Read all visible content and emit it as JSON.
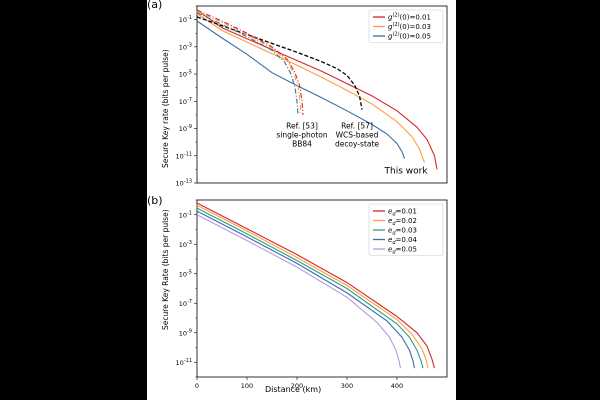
{
  "chart_data": [
    {
      "panel_label": "(a)",
      "type": "line",
      "ylabel": "Secure Key rate (bits per pulse)",
      "xlabel": "",
      "xlim": [
        0,
        500
      ],
      "ylim_log10": [
        -13,
        0
      ],
      "yscale": "log",
      "ytick_labels": [
        "10^-1",
        "10^-3",
        "10^-5",
        "10^-7",
        "10^-9",
        "10^-11",
        "10^-13"
      ],
      "ytick_exponents": [
        -1,
        -3,
        -5,
        -7,
        -9,
        -11,
        -13
      ],
      "legend_position": "top-right",
      "series": [
        {
          "name": "g(2)(0)=0.01",
          "color": "#d62728",
          "style": "solid",
          "x": [
            0,
            50,
            100,
            150,
            200,
            250,
            300,
            350,
            400,
            440,
            460,
            475,
            480
          ],
          "log10y": [
            -0.3,
            -1.6,
            -2.4,
            -3.2,
            -4.0,
            -4.8,
            -5.7,
            -6.6,
            -7.7,
            -8.9,
            -9.8,
            -11.0,
            -12.0
          ]
        },
        {
          "name": "g(2)(0)=0.03",
          "color": "#ff9f3a",
          "style": "solid",
          "x": [
            0,
            50,
            100,
            150,
            200,
            250,
            300,
            350,
            400,
            430,
            445,
            455
          ],
          "log10y": [
            -0.55,
            -1.8,
            -2.65,
            -3.5,
            -4.35,
            -5.25,
            -6.2,
            -7.2,
            -8.5,
            -9.6,
            -10.5,
            -11.5
          ]
        },
        {
          "name": "g(2)(0)=0.05",
          "color": "#3a6ea5",
          "style": "solid",
          "x": [
            0,
            50,
            100,
            150,
            200,
            250,
            300,
            350,
            380,
            400,
            410,
            415
          ],
          "log10y": [
            -1.1,
            -2.35,
            -3.55,
            -4.9,
            -5.85,
            -6.75,
            -7.7,
            -8.7,
            -9.4,
            -10.1,
            -10.7,
            -11.2
          ]
        },
        {
          "name": "Ref. [57] WCS-based decoy-state",
          "color": "#000000",
          "style": "dashed",
          "x": [
            0,
            50,
            100,
            150,
            200,
            250,
            280,
            300,
            315,
            325,
            330
          ],
          "log10y": [
            -0.8,
            -1.45,
            -2.1,
            -2.75,
            -3.4,
            -4.1,
            -4.6,
            -5.1,
            -5.8,
            -6.6,
            -7.6
          ]
        },
        {
          "name": "Ref. [53] single-photon BB84 (red)",
          "color": "#d62728",
          "style": "dashdot",
          "x": [
            0,
            50,
            100,
            150,
            180,
            195,
            205,
            210,
            212
          ],
          "log10y": [
            -0.3,
            -1.1,
            -2.0,
            -3.0,
            -3.9,
            -4.8,
            -5.8,
            -7.0,
            -8.0
          ]
        },
        {
          "name": "Ref. [53] single-photon BB84 (orange)",
          "color": "#ff9f3a",
          "style": "dashdot",
          "x": [
            0,
            50,
            100,
            150,
            180,
            193,
            202,
            206,
            208
          ],
          "log10y": [
            -0.4,
            -1.2,
            -2.1,
            -3.1,
            -4.0,
            -4.9,
            -5.9,
            -7.0,
            -8.0
          ]
        },
        {
          "name": "Ref. [53] single-photon BB84 (blue)",
          "color": "#3a6ea5",
          "style": "dashdot",
          "x": [
            0,
            50,
            100,
            150,
            175,
            188,
            196,
            200,
            202
          ],
          "log10y": [
            -0.5,
            -1.35,
            -2.25,
            -3.25,
            -4.1,
            -5.0,
            -6.0,
            -7.0,
            -7.9
          ]
        }
      ],
      "annotations": [
        {
          "text": [
            "Ref. [53]",
            "single-photon",
            "BB84"
          ],
          "x": 210,
          "log10y": -9.0,
          "anchor": "middle"
        },
        {
          "text": [
            "Ref. [57]",
            "WCS-based",
            "decoy-state"
          ],
          "x": 320,
          "log10y": -9.0,
          "anchor": "middle"
        },
        {
          "text": [
            "This work"
          ],
          "x": 375,
          "log10y": -12.3,
          "anchor": "start"
        }
      ]
    },
    {
      "panel_label": "(b)",
      "type": "line",
      "ylabel": "Secure Key Rate (bits per pulse)",
      "xlabel": "Distance (km)",
      "xlim": [
        0,
        500
      ],
      "xticks": [
        0,
        100,
        200,
        300,
        400
      ],
      "ylim_log10": [
        -12,
        0
      ],
      "yscale": "log",
      "ytick_labels": [
        "10^-1",
        "10^-3",
        "10^-5",
        "10^-7",
        "10^-9",
        "10^-11"
      ],
      "ytick_exponents": [
        -1,
        -3,
        -5,
        -7,
        -9,
        -11
      ],
      "legend_position": "top-right",
      "series": [
        {
          "name": "ed=0.01",
          "color": "#d62728",
          "x": [
            0,
            100,
            200,
            300,
            400,
            440,
            460,
            470,
            475
          ],
          "log10y": [
            -0.2,
            -1.95,
            -3.7,
            -5.6,
            -7.9,
            -9.0,
            -9.9,
            -10.8,
            -11.4
          ]
        },
        {
          "name": "ed=0.02",
          "color": "#ff9f3a",
          "x": [
            0,
            100,
            200,
            300,
            400,
            430,
            450,
            458,
            462
          ],
          "log10y": [
            -0.35,
            -2.1,
            -3.9,
            -5.8,
            -8.1,
            -9.1,
            -10.1,
            -10.8,
            -11.4
          ]
        },
        {
          "name": "ed=0.03",
          "color": "#2a9d8f",
          "x": [
            0,
            100,
            200,
            300,
            400,
            425,
            440,
            448,
            452
          ],
          "log10y": [
            -0.55,
            -2.3,
            -4.1,
            -6.0,
            -8.4,
            -9.3,
            -10.2,
            -10.9,
            -11.4
          ]
        },
        {
          "name": "ed=0.04",
          "color": "#3a6ea5",
          "x": [
            0,
            100,
            200,
            300,
            380,
            410,
            425,
            432,
            435
          ],
          "log10y": [
            -0.75,
            -2.5,
            -4.3,
            -6.3,
            -8.2,
            -9.3,
            -10.2,
            -10.9,
            -11.4
          ]
        },
        {
          "name": "ed=0.05",
          "color": "#b39ddb",
          "x": [
            0,
            100,
            200,
            300,
            360,
            385,
            398,
            404,
            407
          ],
          "log10y": [
            -1.0,
            -2.75,
            -4.55,
            -6.6,
            -8.3,
            -9.3,
            -10.2,
            -10.9,
            -11.4
          ]
        }
      ]
    }
  ]
}
